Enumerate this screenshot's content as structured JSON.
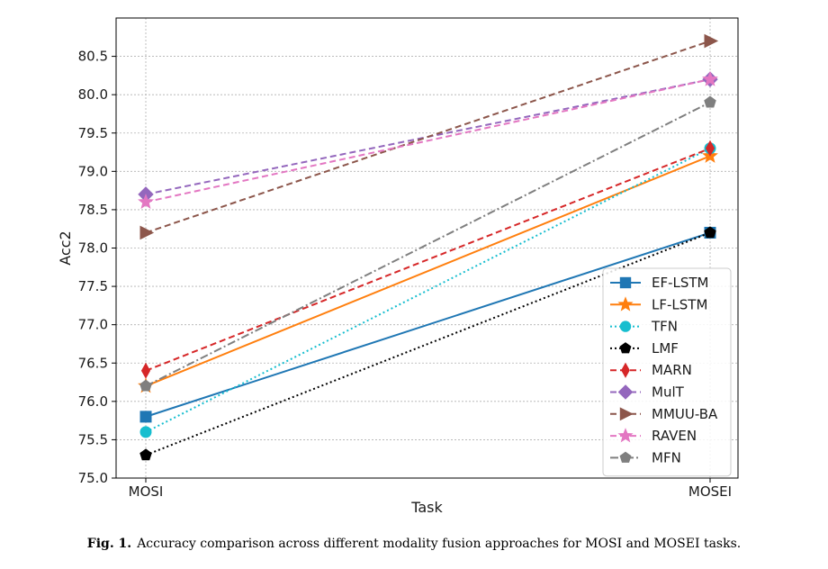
{
  "chart_data": {
    "type": "line",
    "xlabel": "Task",
    "ylabel": "Acc2",
    "categories": [
      "MOSI",
      "MOSEI"
    ],
    "ylim": [
      75.0,
      81.0
    ],
    "yticks": [
      "75.0",
      "75.5",
      "76.0",
      "76.5",
      "77.0",
      "77.5",
      "78.0",
      "78.5",
      "79.0",
      "79.5",
      "80.0",
      "80.5"
    ],
    "grid": true,
    "legend_position": "lower-right",
    "series": [
      {
        "name": "EF-LSTM",
        "values": [
          75.8,
          78.2
        ],
        "color": "#1f77b4",
        "dash": "solid",
        "marker": "square"
      },
      {
        "name": "LF-LSTM",
        "values": [
          76.2,
          79.2
        ],
        "color": "#ff7f0e",
        "dash": "solid",
        "marker": "star"
      },
      {
        "name": "TFN",
        "values": [
          75.6,
          79.3
        ],
        "color": "#17becf",
        "dash": "dotted",
        "marker": "circle"
      },
      {
        "name": "LMF",
        "values": [
          75.3,
          78.2
        ],
        "color": "#000000",
        "dash": "dotted",
        "marker": "pentagon"
      },
      {
        "name": "MARN",
        "values": [
          76.4,
          79.3
        ],
        "color": "#d62728",
        "dash": "dashed",
        "marker": "thin-diamond"
      },
      {
        "name": "MulT",
        "values": [
          78.7,
          80.2
        ],
        "color": "#9467bd",
        "dash": "dashed",
        "marker": "diamond"
      },
      {
        "name": "MMUU-BA",
        "values": [
          78.2,
          80.7
        ],
        "color": "#8c564b",
        "dash": "dashed",
        "marker": "triangle-right"
      },
      {
        "name": "RAVEN",
        "values": [
          78.6,
          80.2
        ],
        "color": "#e377c2",
        "dash": "dashed",
        "marker": "star"
      },
      {
        "name": "MFN",
        "values": [
          76.2,
          79.9
        ],
        "color": "#7f7f7f",
        "dash": "dashdot",
        "marker": "pentagon"
      }
    ]
  },
  "caption": {
    "label": "Fig. 1.",
    "text": "Accuracy comparison across different modality fusion approaches for MOSI and MOSEI tasks."
  }
}
